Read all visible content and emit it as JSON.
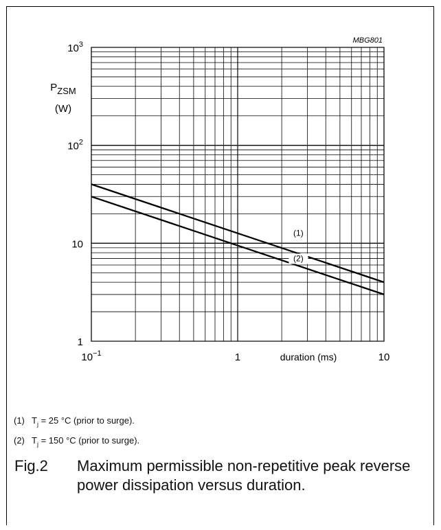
{
  "chart_data": {
    "type": "line",
    "code": "MBG801",
    "xlabel": "duration (ms)",
    "ylabel_symbol": "P",
    "ylabel_subscript": "ZSM",
    "ylabel_unit": "(W)",
    "xscale": "log",
    "yscale": "log",
    "xlim": [
      0.1,
      10
    ],
    "ylim": [
      1,
      1000
    ],
    "grid": true,
    "x_ticks": [
      {
        "value": 0.1,
        "base": "10",
        "exp": "−1"
      },
      {
        "value": 1,
        "base": "1",
        "exp": ""
      },
      {
        "value": 10,
        "base": "10",
        "exp": ""
      }
    ],
    "y_ticks": [
      {
        "value": 1,
        "base": "1",
        "exp": ""
      },
      {
        "value": 10,
        "base": "10",
        "exp": ""
      },
      {
        "value": 100,
        "base": "10",
        "exp": "2"
      },
      {
        "value": 1000,
        "base": "10",
        "exp": "3"
      }
    ],
    "series": [
      {
        "name": "(1)",
        "x": [
          0.1,
          10
        ],
        "y": [
          40,
          4
        ]
      },
      {
        "name": "(2)",
        "x": [
          0.1,
          10
        ],
        "y": [
          30,
          3
        ]
      }
    ]
  },
  "notes": [
    {
      "num": "(1)",
      "sym": "T",
      "sub": "j",
      "text": " = 25 °C (prior to surge)."
    },
    {
      "num": "(2)",
      "sym": "T",
      "sub": "j",
      "text": " = 150 °C (prior to surge)."
    }
  ],
  "caption": {
    "number": "Fig.2",
    "text": "Maximum permissible non-repetitive peak reverse power dissipation versus duration."
  }
}
